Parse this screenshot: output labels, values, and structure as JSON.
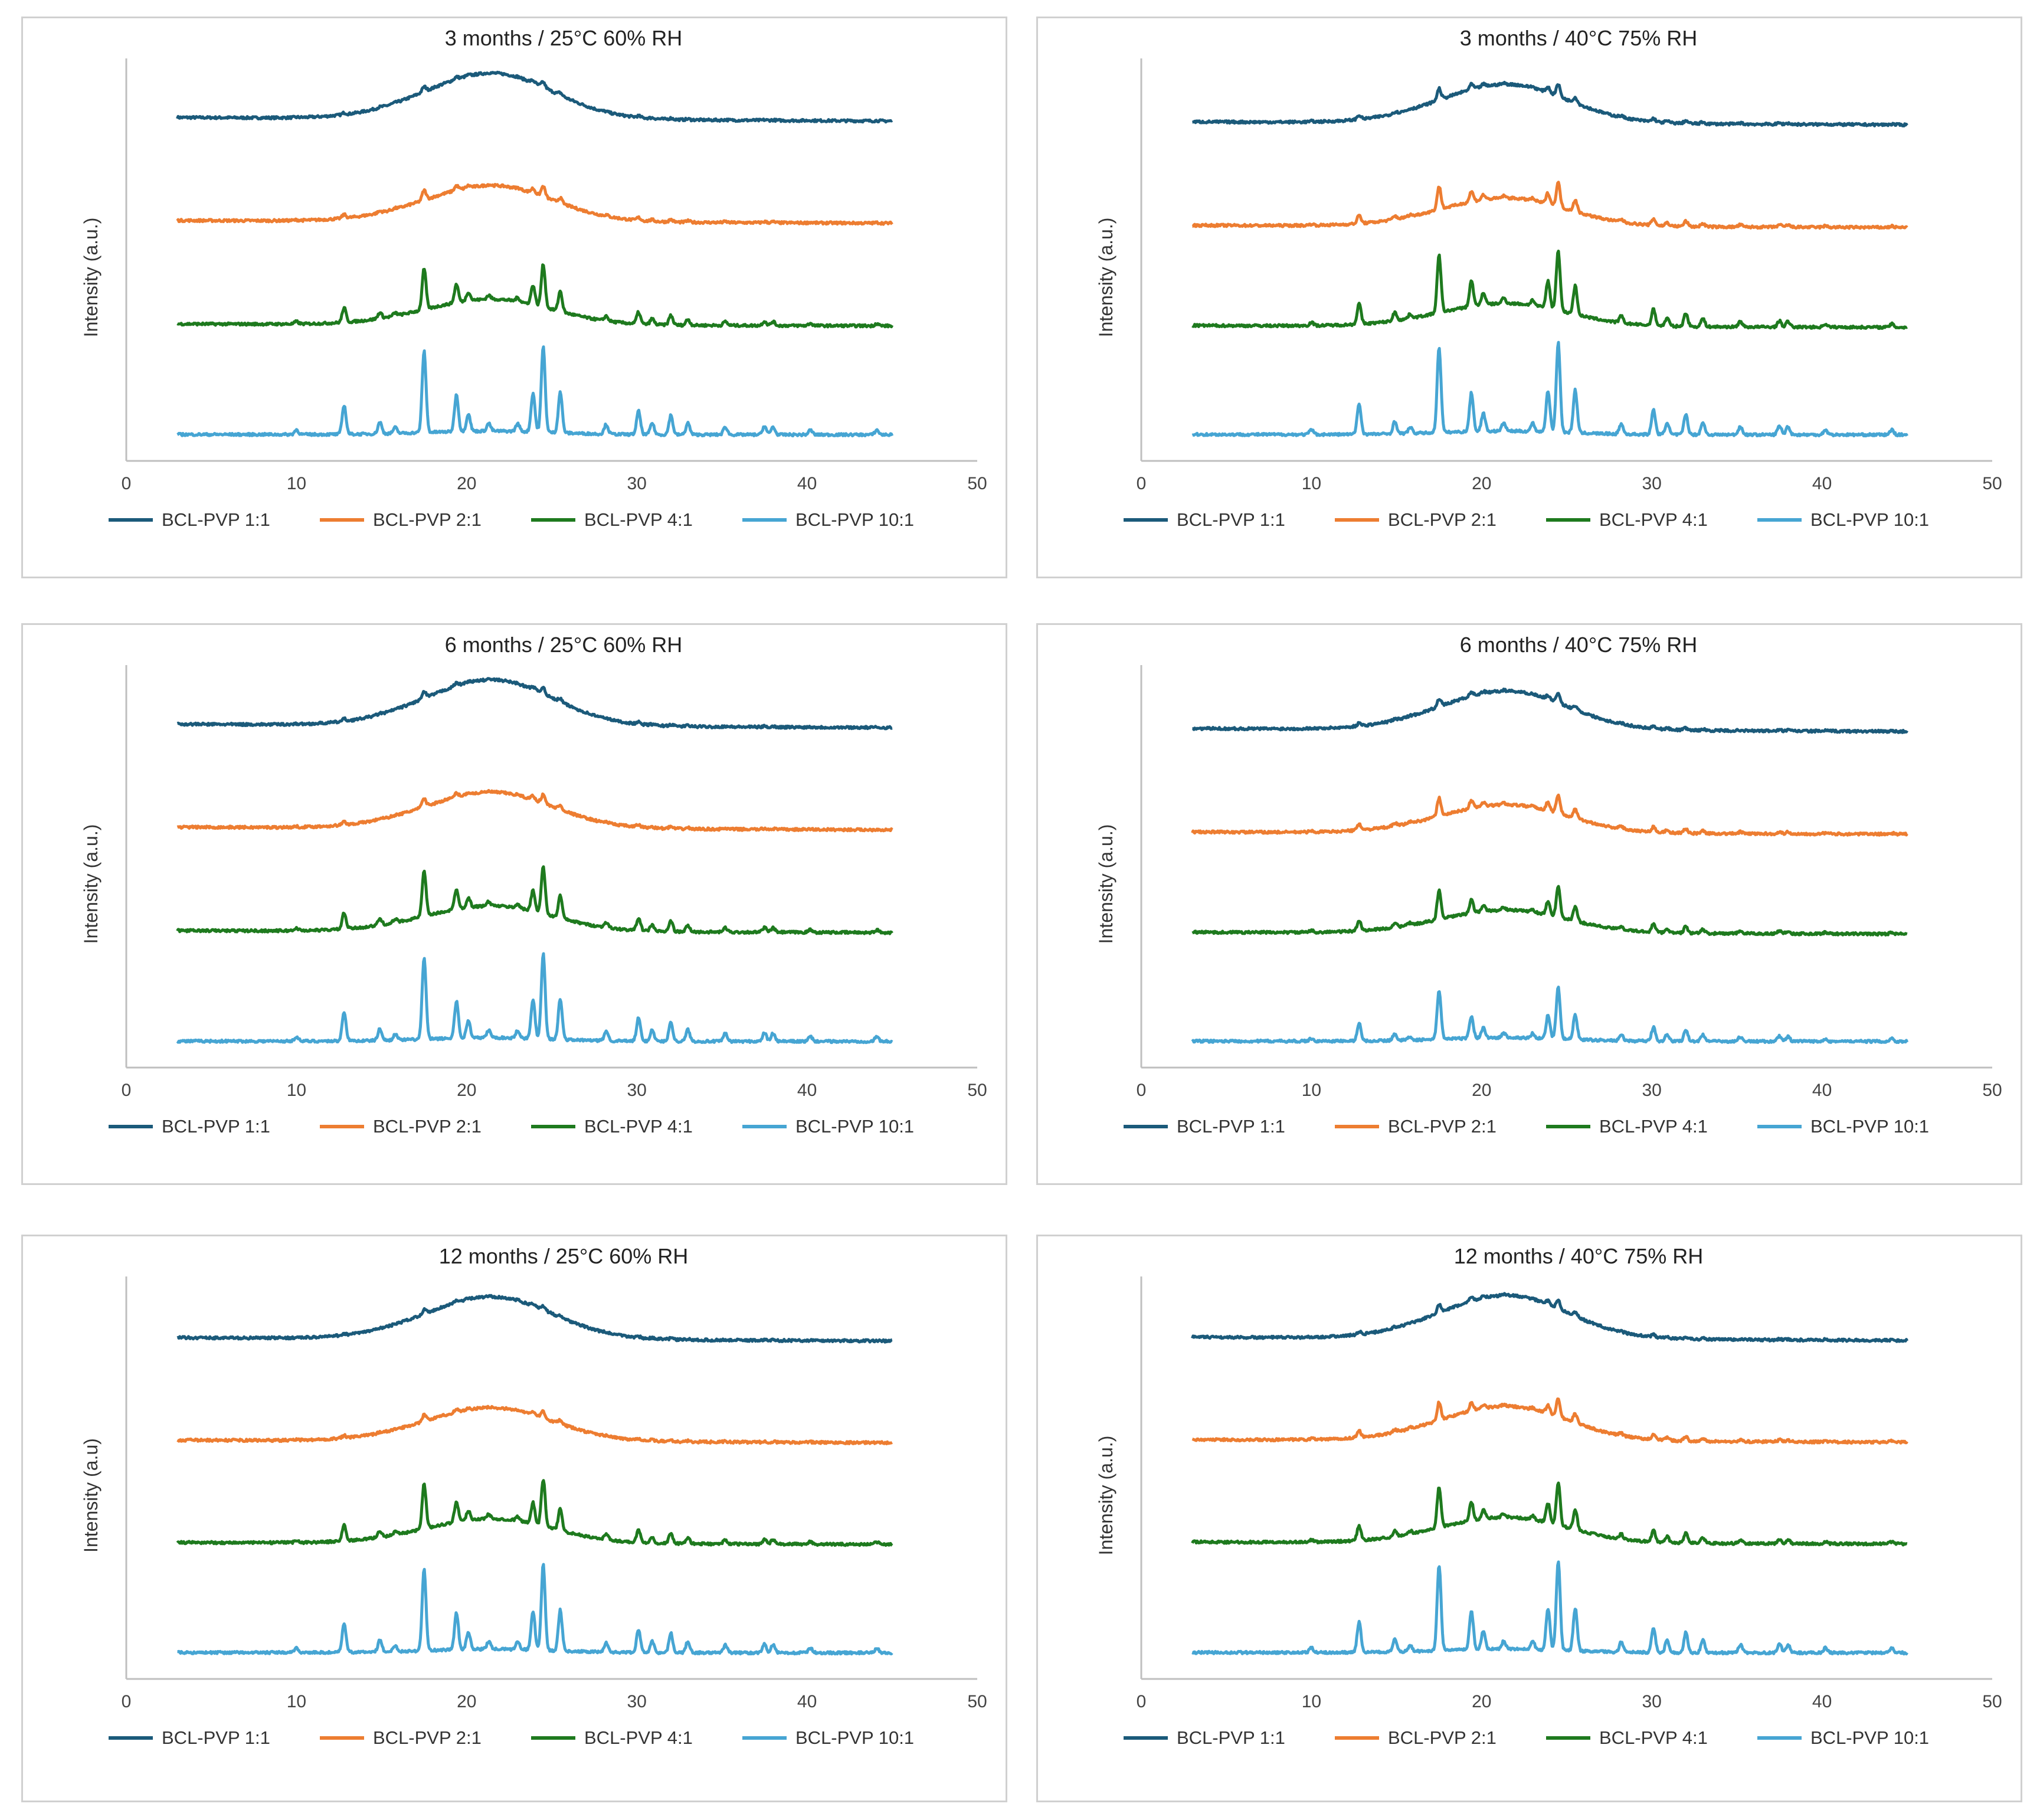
{
  "colors": {
    "BCL-PVP 1:1": "#1b5a7a",
    "BCL-PVP 2:1": "#ed7d31",
    "BCL-PVP 4:1": "#1e7a1e",
    "BCL-PVP 10:1": "#46a5d3",
    "axis": "#bfbfbf",
    "text": "#222222"
  },
  "chart_data": [
    {
      "type": "line",
      "title": "3 months / 25°C 60% RH",
      "ylabel": "Intensity (a.u.)",
      "xlabel": "",
      "xlim": [
        0,
        50
      ],
      "xticks": [
        "0",
        "10",
        "20",
        "30",
        "40",
        "50"
      ],
      "x_range": [
        3,
        45
      ],
      "legend_position": "bottom",
      "series": [
        {
          "name": "BCL-PVP 1:1",
          "offset": 3,
          "halo": 2.6,
          "peak_scale": 0.06
        },
        {
          "name": "BCL-PVP 2:1",
          "offset": 2,
          "halo": 2.05,
          "peak_scale": 0.12
        },
        {
          "name": "BCL-PVP 4:1",
          "offset": 1,
          "halo": 1.45,
          "peak_scale": 0.5
        },
        {
          "name": "BCL-PVP 10:1",
          "offset": 0,
          "halo": 0.2,
          "peak_scale": 1.0
        }
      ]
    },
    {
      "type": "line",
      "title": "3 months / 40°C 75% RH",
      "ylabel": "Intensity (a.u.)",
      "xlabel": "",
      "xlim": [
        0,
        50
      ],
      "xticks": [
        "0",
        "10",
        "20",
        "30",
        "40",
        "50"
      ],
      "x_range": [
        3,
        45
      ],
      "legend_position": "bottom",
      "series": [
        {
          "name": "BCL-PVP 1:1",
          "offset": 3,
          "halo": 2.2,
          "peak_scale": 0.14
        },
        {
          "name": "BCL-PVP 2:1",
          "offset": 2,
          "halo": 1.6,
          "peak_scale": 0.28
        },
        {
          "name": "BCL-PVP 4:1",
          "offset": 1,
          "halo": 1.3,
          "peak_scale": 0.7
        },
        {
          "name": "BCL-PVP 10:1",
          "offset": 0,
          "halo": 0.2,
          "peak_scale": 1.05
        }
      ]
    },
    {
      "type": "line",
      "title": "6 months / 25°C 60% RH",
      "ylabel": "Intensity (a.u.)",
      "xlabel": "",
      "xlim": [
        0,
        50
      ],
      "xticks": [
        "0",
        "10",
        "20",
        "30",
        "40",
        "50"
      ],
      "x_range": [
        3,
        45
      ],
      "legend_position": "bottom",
      "series": [
        {
          "name": "BCL-PVP 1:1",
          "offset": 3,
          "halo": 2.6,
          "peak_scale": 0.08
        },
        {
          "name": "BCL-PVP 2:1",
          "offset": 2,
          "halo": 2.05,
          "peak_scale": 0.1
        },
        {
          "name": "BCL-PVP 4:1",
          "offset": 1,
          "halo": 1.45,
          "peak_scale": 0.55
        },
        {
          "name": "BCL-PVP 10:1",
          "offset": 0,
          "halo": 0.2,
          "peak_scale": 1.0
        }
      ]
    },
    {
      "type": "line",
      "title": "6 months / 40°C 75% RH",
      "ylabel": "Intensity (a.u.)",
      "xlabel": "",
      "xlim": [
        0,
        50
      ],
      "xticks": [
        "0",
        "10",
        "20",
        "30",
        "40",
        "50"
      ],
      "x_range": [
        3,
        45
      ],
      "legend_position": "bottom",
      "series": [
        {
          "name": "BCL-PVP 1:1",
          "offset": 3,
          "halo": 2.2,
          "peak_scale": 0.1
        },
        {
          "name": "BCL-PVP 2:1",
          "offset": 2,
          "halo": 1.6,
          "peak_scale": 0.22
        },
        {
          "name": "BCL-PVP 4:1",
          "offset": 1,
          "halo": 1.3,
          "peak_scale": 0.35
        },
        {
          "name": "BCL-PVP 10:1",
          "offset": 0,
          "halo": 0.2,
          "peak_scale": 0.6
        }
      ]
    },
    {
      "type": "line",
      "title": "12 months / 25°C 60% RH",
      "ylabel": "Intensity (a.u)",
      "xlabel": "",
      "xlim": [
        0,
        50
      ],
      "xticks": [
        "0",
        "10",
        "20",
        "30",
        "40",
        "50"
      ],
      "x_range": [
        3,
        45
      ],
      "legend_position": "bottom",
      "series": [
        {
          "name": "BCL-PVP 1:1",
          "offset": 3,
          "halo": 2.4,
          "peak_scale": 0.05
        },
        {
          "name": "BCL-PVP 2:1",
          "offset": 2,
          "halo": 1.9,
          "peak_scale": 0.08
        },
        {
          "name": "BCL-PVP 4:1",
          "offset": 1,
          "halo": 1.4,
          "peak_scale": 0.55
        },
        {
          "name": "BCL-PVP 10:1",
          "offset": 0,
          "halo": 0.2,
          "peak_scale": 1.0
        }
      ]
    },
    {
      "type": "line",
      "title": "12 months / 40°C 75% RH",
      "ylabel": "Intensity (a.u.)",
      "xlabel": "",
      "xlim": [
        0,
        50
      ],
      "xticks": [
        "0",
        "10",
        "20",
        "30",
        "40",
        "50"
      ],
      "x_range": [
        3,
        45
      ],
      "legend_position": "bottom",
      "series": [
        {
          "name": "BCL-PVP 1:1",
          "offset": 3,
          "halo": 2.45,
          "peak_scale": 0.1
        },
        {
          "name": "BCL-PVP 2:1",
          "offset": 2,
          "halo": 1.95,
          "peak_scale": 0.22
        },
        {
          "name": "BCL-PVP 4:1",
          "offset": 1,
          "halo": 1.45,
          "peak_scale": 0.5
        },
        {
          "name": "BCL-PVP 10:1",
          "offset": 0,
          "halo": 0.2,
          "peak_scale": 1.05
        }
      ]
    }
  ],
  "diffraction_peaks_2theta": [
    {
      "x": 10.0,
      "h": 0.12
    },
    {
      "x": 12.8,
      "h": 0.75
    },
    {
      "x": 14.9,
      "h": 0.3
    },
    {
      "x": 15.8,
      "h": 0.15
    },
    {
      "x": 17.5,
      "h": 2.1
    },
    {
      "x": 19.4,
      "h": 0.95
    },
    {
      "x": 20.1,
      "h": 0.45
    },
    {
      "x": 21.3,
      "h": 0.2
    },
    {
      "x": 23.0,
      "h": 0.2
    },
    {
      "x": 23.9,
      "h": 1.0
    },
    {
      "x": 24.5,
      "h": 2.2
    },
    {
      "x": 25.5,
      "h": 1.05
    },
    {
      "x": 28.2,
      "h": 0.25
    },
    {
      "x": 30.1,
      "h": 0.6
    },
    {
      "x": 30.9,
      "h": 0.3
    },
    {
      "x": 32.0,
      "h": 0.5
    },
    {
      "x": 33.0,
      "h": 0.3
    },
    {
      "x": 35.2,
      "h": 0.2
    },
    {
      "x": 37.5,
      "h": 0.22
    },
    {
      "x": 38.0,
      "h": 0.2
    },
    {
      "x": 40.2,
      "h": 0.12
    },
    {
      "x": 44.1,
      "h": 0.12
    }
  ]
}
